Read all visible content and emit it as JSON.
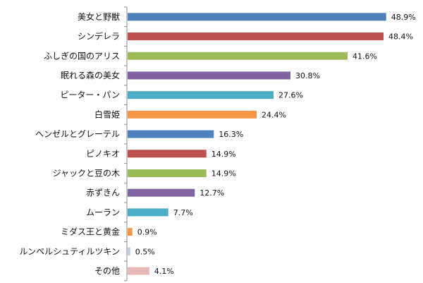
{
  "chart_data": {
    "type": "bar",
    "orientation": "horizontal",
    "title": "",
    "xlabel": "",
    "ylabel": "",
    "categories": [
      "美女と野獣",
      "シンデレラ",
      "ふしぎの国のアリス",
      "眠れる森の美女",
      "ピーター・パン",
      "白雪姫",
      "ヘンゼルとグレーテル",
      "ピノキオ",
      "ジャックと豆の木",
      "赤ずきん",
      "ムーラン",
      "ミダス王と黄金",
      "ルンペルシュティルツキン",
      "その他"
    ],
    "values": [
      48.9,
      48.4,
      41.6,
      30.8,
      27.6,
      24.4,
      16.3,
      14.9,
      14.9,
      12.7,
      7.7,
      0.9,
      0.5,
      4.1
    ],
    "value_labels": [
      "48.9%",
      "48.4%",
      "41.6%",
      "30.8%",
      "27.6%",
      "24.4%",
      "16.3%",
      "14.9%",
      "14.9%",
      "12.7%",
      "7.7%",
      "0.9%",
      "0.5%",
      "4.1%"
    ],
    "colors": [
      "#4f81bd",
      "#c0504d",
      "#9bbb59",
      "#8064a2",
      "#4bacc6",
      "#f79646",
      "#4f81bd",
      "#c0504d",
      "#9bbb59",
      "#8064a2",
      "#4bacc6",
      "#f79646",
      "#b9cde5",
      "#e6b9b8"
    ],
    "xlim": [
      0,
      50
    ],
    "grid": false,
    "legend": "none"
  }
}
